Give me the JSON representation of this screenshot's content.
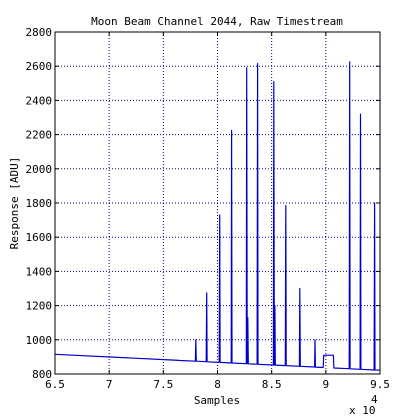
{
  "chart_data": {
    "type": "line",
    "title": "Moon Beam Channel 2044, Raw Timestream",
    "xlabel": "Samples",
    "ylabel": "Response [ADU]",
    "x_exponent_label": "x 10",
    "x_exponent_power": "4",
    "xlim": [
      6.5,
      9.5
    ],
    "ylim": [
      800,
      2800
    ],
    "xticks": [
      6.5,
      7,
      7.5,
      8,
      8.5,
      9,
      9.5
    ],
    "xtick_labels": [
      "6.5",
      "7",
      "7.5",
      "8",
      "8.5",
      "9",
      "9.5"
    ],
    "yticks": [
      800,
      1000,
      1200,
      1400,
      1600,
      1800,
      2000,
      2200,
      2400,
      2600,
      2800
    ],
    "ytick_labels": [
      "800",
      "1000",
      "1200",
      "1400",
      "1600",
      "1800",
      "2000",
      "2200",
      "2400",
      "2600",
      "2800"
    ],
    "grid": true,
    "baseline": {
      "x": [
        6.5,
        9.5
      ],
      "y": [
        915,
        822
      ]
    },
    "spikes": [
      {
        "x": 7.65,
        "y": 880
      },
      {
        "x": 7.8,
        "y": 1000
      },
      {
        "x": 7.9,
        "y": 1275
      },
      {
        "x": 8.02,
        "y": 1730
      },
      {
        "x": 8.13,
        "y": 2225
      },
      {
        "x": 8.27,
        "y": 2590
      },
      {
        "x": 8.28,
        "y": 1130
      },
      {
        "x": 8.37,
        "y": 2615
      },
      {
        "x": 8.52,
        "y": 2510
      },
      {
        "x": 8.53,
        "y": 1200
      },
      {
        "x": 8.63,
        "y": 1785
      },
      {
        "x": 8.76,
        "y": 1300
      },
      {
        "x": 8.9,
        "y": 1000
      },
      {
        "x": 9.22,
        "y": 2625
      },
      {
        "x": 9.32,
        "y": 2320
      },
      {
        "x": 9.45,
        "y": 1800
      }
    ],
    "plateau": {
      "x_start": 8.98,
      "x_end": 9.07,
      "y": 910
    }
  }
}
